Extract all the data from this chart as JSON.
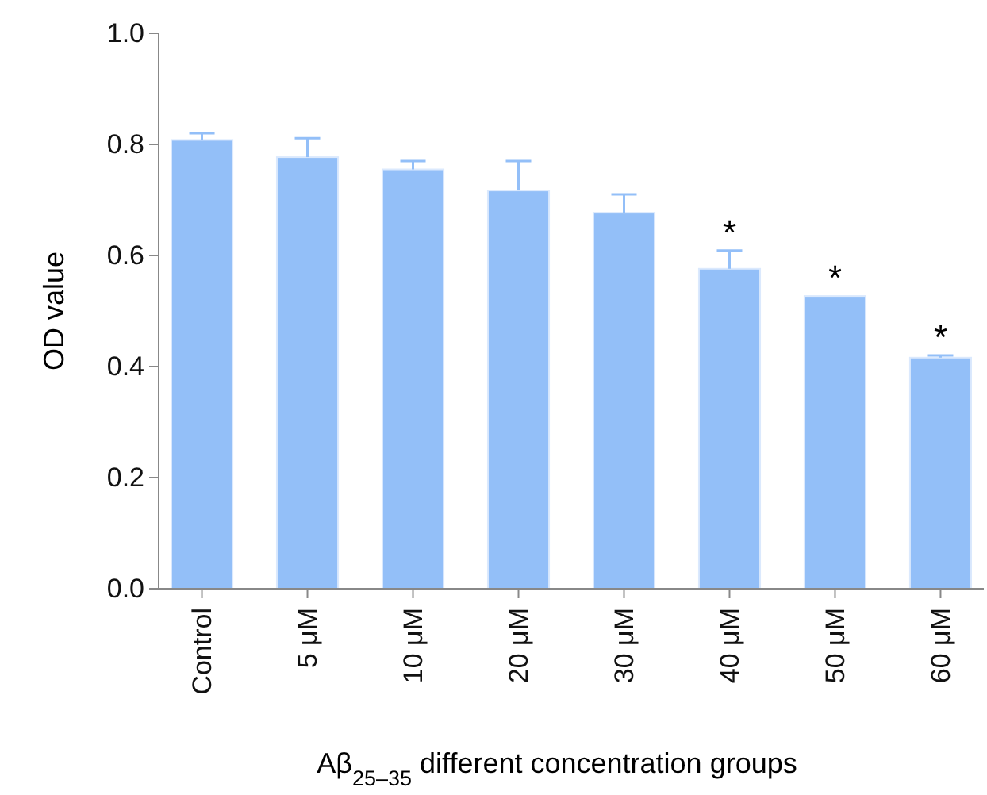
{
  "chart_data": {
    "type": "bar",
    "xlabel": "Aβ$_{25–35}$ different concentration groups",
    "ylabel": "OD value",
    "categories": [
      "Control",
      "5 μM",
      "10 μM",
      "20 μM",
      "30 μM",
      "40 μM",
      "50 μM",
      "60 μM"
    ],
    "values": [
      0.808,
      0.777,
      0.755,
      0.717,
      0.677,
      0.576,
      0.527,
      0.416
    ],
    "errors": [
      [
        0.808,
        0.82
      ],
      [
        0.777,
        0.811
      ],
      [
        0.755,
        0.77
      ],
      [
        0.717,
        0.77
      ],
      [
        0.677,
        0.71
      ],
      [
        0.576,
        0.609
      ],
      null,
      [
        0.416,
        0.42
      ]
    ],
    "color": "#93bff8",
    "ylim": [
      0,
      1
    ],
    "yticks": [
      {
        "value": 0,
        "label": "0.0"
      },
      0.2,
      0.4,
      0.6,
      0.8,
      {
        "value": 1,
        "label": "1.0"
      }
    ],
    "grid": false,
    "annotations": [
      "*",
      "*",
      "*"
    ]
  }
}
